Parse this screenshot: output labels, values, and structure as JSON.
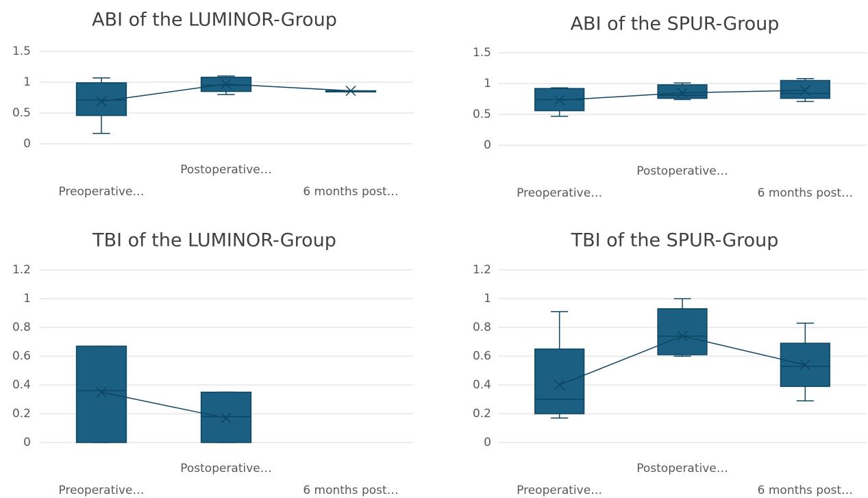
{
  "chart_data": [
    {
      "type": "box",
      "title": "ABI of the LUMINOR-Group",
      "categories": [
        "Preoperative…",
        "Postoperative…",
        "6 months post…"
      ],
      "min": [
        0.17,
        0.8,
        0.86
      ],
      "q1": [
        0.46,
        0.85,
        0.86
      ],
      "median": [
        0.71,
        0.95,
        0.86
      ],
      "q3": [
        0.99,
        1.08,
        0.86
      ],
      "max": [
        1.07,
        1.1,
        0.86
      ],
      "mean": [
        0.69,
        0.97,
        0.86
      ],
      "color": "#1b5f82",
      "ylim": [
        0,
        1.5
      ],
      "yticks": [
        0,
        0.5,
        1,
        1.5
      ],
      "grid": true
    },
    {
      "type": "box",
      "title": "ABI of the SPUR-Group",
      "categories": [
        "Preoperative…",
        "Postoperative…",
        "6 months post…"
      ],
      "min": [
        0.47,
        0.74,
        0.71
      ],
      "q1": [
        0.56,
        0.76,
        0.76
      ],
      "median": [
        0.74,
        0.81,
        0.84
      ],
      "q3": [
        0.92,
        0.98,
        1.05
      ],
      "max": [
        0.93,
        1.01,
        1.08
      ],
      "mean": [
        0.73,
        0.85,
        0.89
      ],
      "color": "#1b5f82",
      "ylim": [
        0,
        1.5
      ],
      "yticks": [
        0,
        0.5,
        1,
        1.5
      ],
      "grid": true
    },
    {
      "type": "box",
      "title": "TBI of the LUMINOR-Group",
      "categories": [
        "Preoperative…",
        "Postoperative…",
        "6 months post…"
      ],
      "min": [
        0,
        0,
        null
      ],
      "q1": [
        0,
        0,
        null
      ],
      "median": [
        0.36,
        0.18,
        null
      ],
      "q3": [
        0.67,
        0.35,
        null
      ],
      "max": [
        0.67,
        0.35,
        null
      ],
      "mean": [
        0.35,
        0.17,
        null
      ],
      "color": "#1b5f82",
      "ylim": [
        0,
        1.2
      ],
      "yticks": [
        0,
        0.2,
        0.4,
        0.6,
        0.8,
        1,
        1.2
      ],
      "grid": true
    },
    {
      "type": "box",
      "title": "TBI of the SPUR-Group",
      "categories": [
        "Preoperative…",
        "Postoperative…",
        "6 months post…"
      ],
      "min": [
        0.17,
        0.6,
        0.29
      ],
      "q1": [
        0.2,
        0.61,
        0.39
      ],
      "median": [
        0.3,
        0.74,
        0.53
      ],
      "q3": [
        0.65,
        0.93,
        0.69
      ],
      "max": [
        0.91,
        1,
        0.83
      ],
      "mean": [
        0.4,
        0.74,
        0.54
      ],
      "color": "#1b5f82",
      "ylim": [
        0,
        1.2
      ],
      "yticks": [
        0,
        0.2,
        0.4,
        0.6,
        0.8,
        1,
        1.2
      ],
      "grid": true
    }
  ]
}
